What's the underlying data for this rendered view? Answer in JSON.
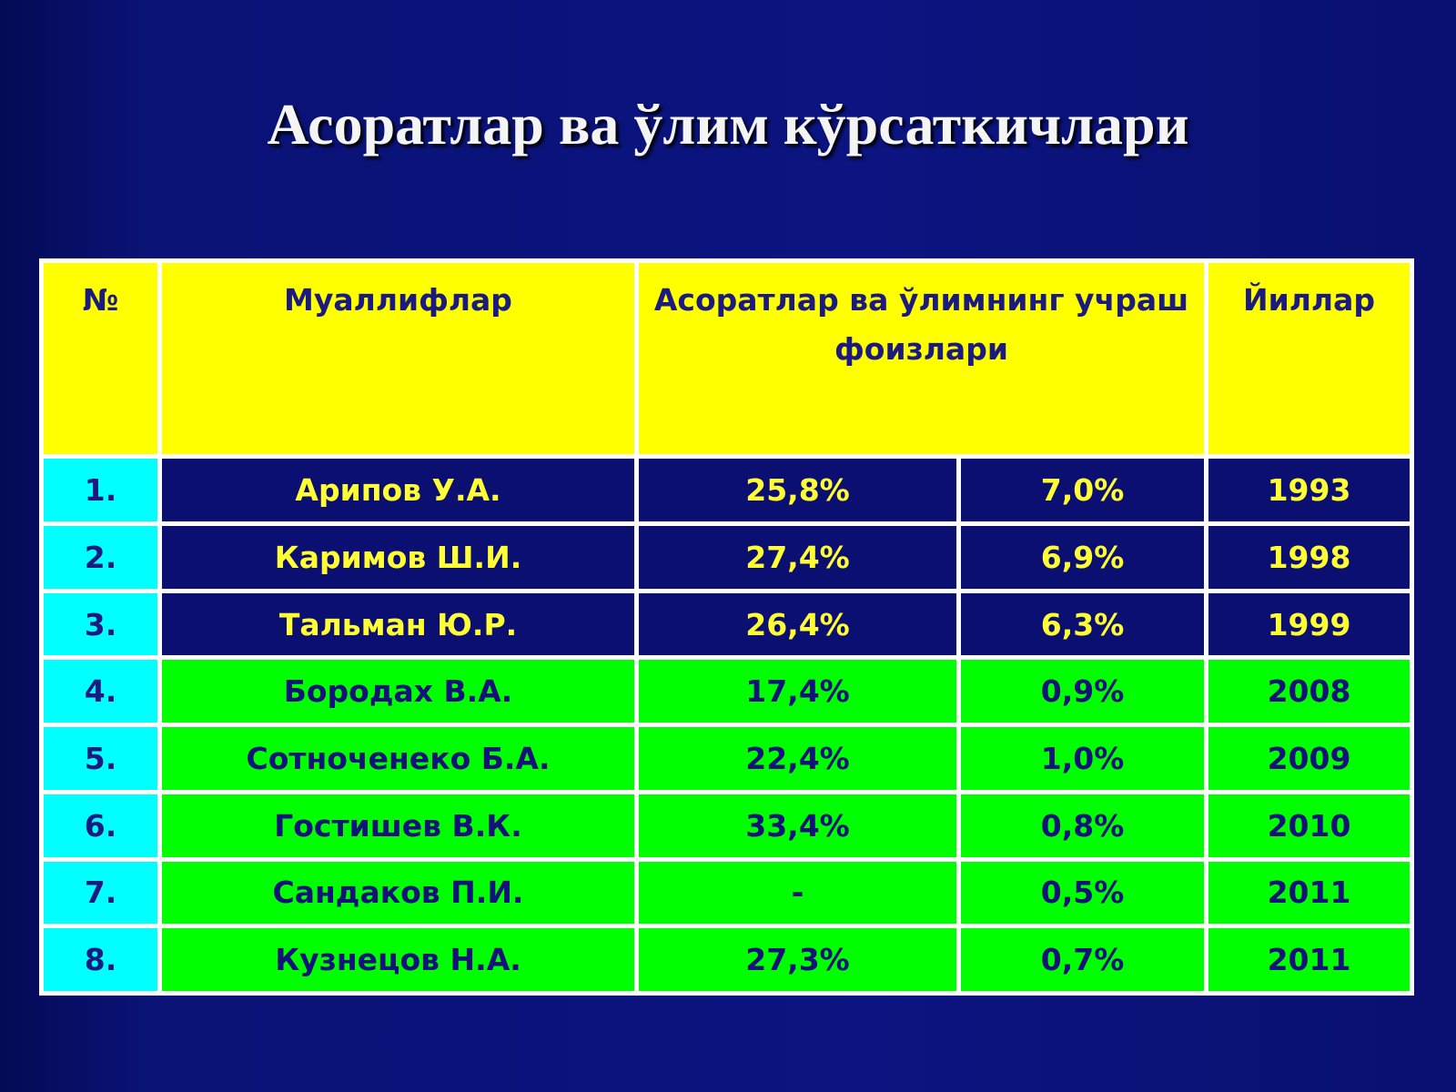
{
  "title": "Асоратлар ва ўлим кўрсаткичлари",
  "table": {
    "header": [
      "№",
      "Муаллифлар",
      "Асоратлар ва ўлимнинг учраш фоизлари",
      "Йиллар"
    ],
    "rows": [
      [
        "1.",
        "Арипов У.А.",
        "25,8%",
        "7,0%",
        "1993"
      ],
      [
        "2.",
        "Каримов Ш.И.",
        "27,4%",
        "6,9%",
        "1998"
      ],
      [
        "3.",
        "Тальман Ю.Р.",
        "26,4%",
        "6,3%",
        "1999"
      ],
      [
        "4.",
        "Бородах В.А.",
        "17,4%",
        "0,9%",
        "2008"
      ],
      [
        "5.",
        "Сотноченеко Б.А.",
        "22,4%",
        "1,0%",
        "2009"
      ],
      [
        "6.",
        "Гостишев В.К.",
        "33,4%",
        "0,8%",
        "2010"
      ],
      [
        "7.",
        "Сандаков П.И.",
        "-",
        "0,5%",
        "2011"
      ],
      [
        "8.",
        "Кузнецов Н.А.",
        "27,3%",
        "0,7%",
        "2011"
      ]
    ]
  }
}
